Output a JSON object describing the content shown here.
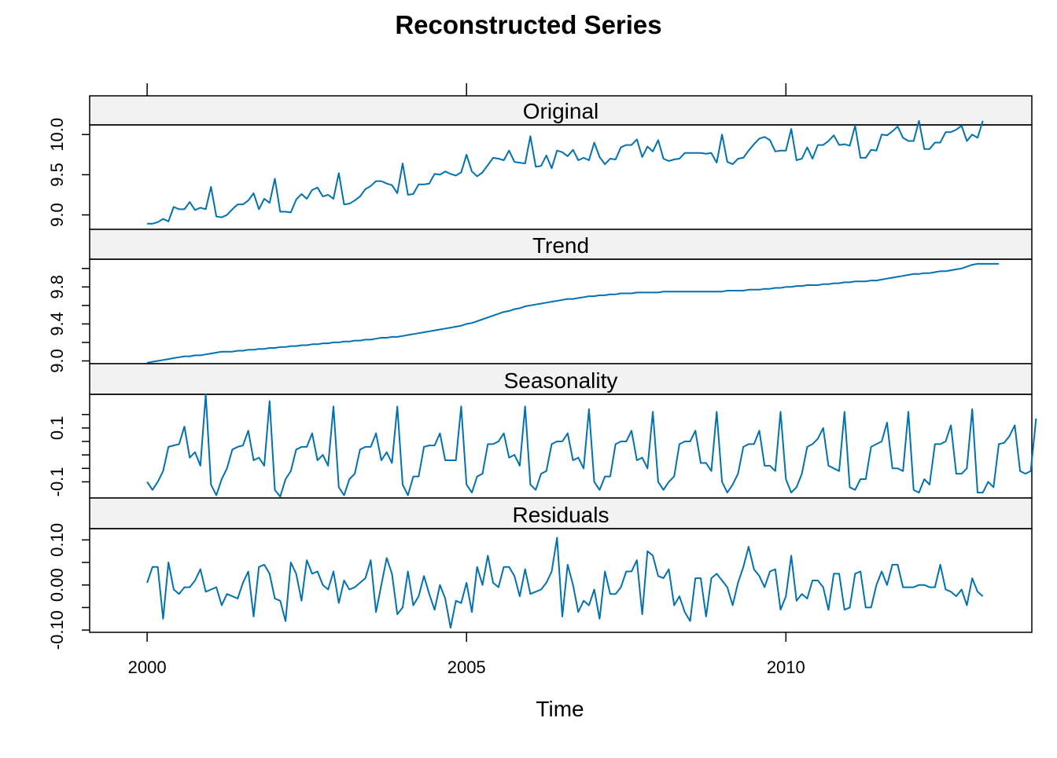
{
  "chart_data": {
    "type": "line",
    "title": "Reconstructed Series",
    "xlabel": "Time",
    "ylabel": "",
    "xlim": [
      1999.1,
      2013.85
    ],
    "x_ticks": [
      2000,
      2005,
      2010
    ],
    "x_tick_labels": [
      "2000",
      "2005",
      "2010"
    ],
    "x": {
      "start": 2000.0,
      "step": 0.0833333,
      "count": 157
    },
    "line_color": "#0072B2",
    "strip_fill": "#F2F2F2",
    "grid": false,
    "legend": "none",
    "panels": [
      {
        "name": "Original",
        "ylim": [
          8.82,
          10.12
        ],
        "y_ticks": [
          9.0,
          9.5,
          10.0
        ],
        "y_tick_labels": [
          "9.0",
          "9.5",
          "10.0"
        ],
        "values": [
          8.89,
          8.89,
          8.91,
          8.95,
          8.92,
          9.1,
          9.07,
          9.07,
          9.16,
          9.06,
          9.09,
          9.07,
          9.35,
          8.98,
          8.97,
          9.0,
          9.07,
          9.13,
          9.13,
          9.18,
          9.27,
          9.07,
          9.2,
          9.15,
          9.45,
          9.04,
          9.04,
          9.03,
          9.19,
          9.26,
          9.2,
          9.31,
          9.34,
          9.23,
          9.25,
          9.2,
          9.52,
          9.13,
          9.14,
          9.18,
          9.23,
          9.32,
          9.36,
          9.42,
          9.42,
          9.39,
          9.37,
          9.27,
          9.64,
          9.25,
          9.26,
          9.38,
          9.38,
          9.39,
          9.51,
          9.5,
          9.54,
          9.51,
          9.49,
          9.53,
          9.75,
          9.54,
          9.48,
          9.53,
          9.62,
          9.71,
          9.7,
          9.68,
          9.8,
          9.66,
          9.65,
          9.64,
          9.98,
          9.6,
          9.61,
          9.74,
          9.58,
          9.8,
          9.78,
          9.73,
          9.81,
          9.68,
          9.71,
          9.68,
          9.9,
          9.72,
          9.63,
          9.7,
          9.69,
          9.84,
          9.87,
          9.87,
          9.94,
          9.72,
          9.85,
          9.79,
          9.93,
          9.7,
          9.67,
          9.69,
          9.7,
          9.77,
          9.77,
          9.77,
          9.77,
          9.76,
          9.77,
          9.65,
          10.0,
          9.66,
          9.63,
          9.7,
          9.71,
          9.8,
          9.88,
          9.95,
          9.97,
          9.93,
          9.79,
          9.8,
          9.8,
          10.07,
          9.68,
          9.7,
          9.84,
          9.7,
          9.87,
          9.87,
          9.92,
          9.99,
          9.87,
          9.88,
          9.86,
          10.11,
          9.71,
          9.71,
          9.81,
          9.8,
          10.0,
          9.99,
          10.04,
          10.1,
          9.96,
          9.92,
          9.92,
          10.17,
          9.82,
          9.82,
          9.9,
          9.9,
          10.03,
          10.03,
          10.06,
          10.11,
          9.92,
          10.0,
          9.96,
          10.17
        ]
      },
      {
        "name": "Trend",
        "ylim": [
          8.97,
          10.1
        ],
        "y_ticks": [
          9.0,
          9.2,
          9.4,
          9.6,
          9.8,
          10.0
        ],
        "y_tick_labels": [
          "9.0",
          "",
          "9.4",
          "",
          "9.8",
          ""
        ],
        "values": [
          8.98,
          8.99,
          9.0,
          9.01,
          9.02,
          9.03,
          9.04,
          9.05,
          9.05,
          9.06,
          9.06,
          9.07,
          9.08,
          9.09,
          9.1,
          9.1,
          9.1,
          9.11,
          9.11,
          9.12,
          9.12,
          9.13,
          9.13,
          9.14,
          9.14,
          9.15,
          9.15,
          9.16,
          9.16,
          9.17,
          9.17,
          9.18,
          9.18,
          9.19,
          9.19,
          9.2,
          9.2,
          9.21,
          9.21,
          9.22,
          9.22,
          9.23,
          9.23,
          9.24,
          9.25,
          9.25,
          9.26,
          9.26,
          9.27,
          9.28,
          9.29,
          9.3,
          9.31,
          9.32,
          9.33,
          9.34,
          9.35,
          9.36,
          9.37,
          9.38,
          9.4,
          9.41,
          9.43,
          9.45,
          9.47,
          9.49,
          9.51,
          9.53,
          9.54,
          9.56,
          9.57,
          9.59,
          9.6,
          9.61,
          9.62,
          9.63,
          9.64,
          9.65,
          9.66,
          9.67,
          9.67,
          9.68,
          9.69,
          9.7,
          9.7,
          9.71,
          9.71,
          9.72,
          9.72,
          9.73,
          9.73,
          9.73,
          9.74,
          9.74,
          9.74,
          9.74,
          9.74,
          9.75,
          9.75,
          9.75,
          9.75,
          9.75,
          9.75,
          9.75,
          9.75,
          9.75,
          9.75,
          9.75,
          9.75,
          9.76,
          9.76,
          9.76,
          9.76,
          9.77,
          9.77,
          9.77,
          9.78,
          9.78,
          9.79,
          9.79,
          9.8,
          9.8,
          9.81,
          9.81,
          9.82,
          9.82,
          9.82,
          9.83,
          9.83,
          9.84,
          9.84,
          9.85,
          9.85,
          9.86,
          9.86,
          9.86,
          9.87,
          9.87,
          9.88,
          9.89,
          9.9,
          9.91,
          9.92,
          9.93,
          9.94,
          9.94,
          9.95,
          9.95,
          9.96,
          9.97,
          9.97,
          9.98,
          9.99,
          10.0,
          10.02,
          10.04,
          10.05,
          10.05,
          10.05,
          10.05,
          10.05
        ]
      },
      {
        "name": "Seasonality",
        "ylim": [
          -0.16,
          0.225
        ],
        "y_ticks": [
          -0.1,
          -0.05,
          0.0,
          0.05,
          0.1,
          0.15
        ],
        "y_tick_labels": [
          "-0.1",
          "",
          "",
          "",
          "0.1",
          ""
        ],
        "values": [
          -0.1,
          -0.13,
          -0.1,
          -0.06,
          0.03,
          0.035,
          0.04,
          0.105,
          -0.01,
          0.01,
          -0.04,
          0.225,
          -0.11,
          -0.15,
          -0.09,
          -0.05,
          0.02,
          0.03,
          0.035,
          0.09,
          -0.02,
          -0.01,
          -0.04,
          0.2,
          -0.13,
          -0.155,
          -0.09,
          -0.06,
          0.02,
          0.03,
          0.03,
          0.08,
          -0.02,
          0.0,
          -0.04,
          0.18,
          -0.12,
          -0.15,
          -0.09,
          -0.07,
          0.02,
          0.03,
          0.03,
          0.08,
          -0.02,
          0.01,
          -0.03,
          0.18,
          -0.11,
          -0.15,
          -0.08,
          -0.08,
          0.03,
          0.035,
          0.035,
          0.08,
          -0.02,
          -0.02,
          -0.02,
          0.18,
          -0.11,
          -0.14,
          -0.08,
          -0.07,
          0.04,
          0.04,
          0.05,
          0.08,
          -0.01,
          0.0,
          -0.04,
          0.18,
          -0.11,
          -0.13,
          -0.07,
          -0.06,
          0.04,
          0.05,
          0.05,
          0.08,
          -0.02,
          -0.01,
          -0.05,
          0.17,
          -0.1,
          -0.13,
          -0.08,
          -0.08,
          0.04,
          0.05,
          0.05,
          0.09,
          -0.02,
          -0.01,
          -0.05,
          0.16,
          -0.1,
          -0.13,
          -0.1,
          -0.08,
          0.04,
          0.05,
          0.05,
          0.09,
          -0.03,
          -0.03,
          -0.06,
          0.16,
          -0.1,
          -0.14,
          -0.11,
          -0.07,
          0.03,
          0.04,
          0.04,
          0.09,
          -0.04,
          -0.04,
          -0.06,
          0.16,
          -0.09,
          -0.14,
          -0.12,
          -0.07,
          0.03,
          0.04,
          0.06,
          0.1,
          -0.04,
          -0.05,
          -0.06,
          0.16,
          -0.12,
          -0.13,
          -0.09,
          -0.09,
          0.03,
          0.04,
          0.05,
          0.12,
          -0.05,
          -0.05,
          -0.06,
          0.16,
          -0.13,
          -0.14,
          -0.09,
          -0.11,
          0.04,
          0.04,
          0.05,
          0.11,
          -0.07,
          -0.07,
          -0.05,
          0.17,
          -0.14,
          -0.14,
          -0.1,
          -0.12,
          0.04,
          0.045,
          0.07,
          0.11,
          -0.06,
          -0.07,
          -0.06,
          0.135
        ]
      },
      {
        "name": "Residuals",
        "ylim": [
          -0.105,
          0.125
        ],
        "y_ticks": [
          -0.1,
          -0.05,
          0.0,
          0.05,
          0.1
        ],
        "y_tick_labels": [
          "-0.10",
          "",
          "0.00",
          "",
          "0.10"
        ],
        "values": [
          0.005,
          0.04,
          0.04,
          -0.075,
          0.05,
          -0.01,
          -0.02,
          -0.005,
          -0.005,
          0.01,
          0.035,
          -0.015,
          -0.01,
          -0.005,
          -0.045,
          -0.02,
          -0.025,
          -0.03,
          0.005,
          0.03,
          -0.07,
          0.04,
          0.045,
          0.025,
          -0.03,
          -0.035,
          -0.08,
          0.05,
          0.025,
          -0.035,
          0.055,
          0.025,
          0.03,
          0.0,
          -0.01,
          0.03,
          -0.04,
          0.01,
          -0.01,
          -0.005,
          0.005,
          0.015,
          0.055,
          -0.06,
          0.0,
          0.06,
          0.025,
          -0.065,
          -0.05,
          0.03,
          -0.045,
          -0.025,
          0.02,
          -0.02,
          -0.055,
          0.0,
          -0.03,
          -0.095,
          -0.035,
          -0.04,
          0.005,
          -0.06,
          0.04,
          0.0,
          0.065,
          0.005,
          -0.005,
          0.04,
          0.04,
          0.02,
          -0.025,
          0.035,
          -0.02,
          -0.015,
          -0.01,
          0.005,
          0.03,
          0.105,
          -0.07,
          0.045,
          0.0,
          -0.06,
          -0.035,
          -0.045,
          -0.01,
          -0.075,
          0.03,
          -0.02,
          -0.02,
          -0.005,
          0.03,
          0.03,
          0.055,
          -0.065,
          0.075,
          0.065,
          0.02,
          0.015,
          0.035,
          -0.045,
          -0.025,
          -0.06,
          -0.08,
          0.015,
          0.015,
          -0.07,
          0.015,
          0.025,
          0.01,
          -0.005,
          -0.045,
          0.005,
          0.04,
          0.085,
          0.035,
          0.02,
          -0.005,
          0.03,
          0.035,
          -0.055,
          -0.025,
          0.065,
          -0.035,
          -0.02,
          -0.03,
          0.01,
          0.01,
          -0.005,
          -0.055,
          0.025,
          0.025,
          -0.055,
          -0.05,
          0.025,
          0.03,
          -0.05,
          -0.05,
          0.0,
          0.03,
          0.0,
          0.045,
          0.045,
          -0.005,
          -0.005,
          -0.005,
          0.0,
          0.0,
          -0.005,
          -0.005,
          0.045,
          -0.01,
          -0.015,
          -0.025,
          -0.01,
          -0.045,
          0.015,
          -0.015,
          -0.025
        ]
      }
    ]
  }
}
